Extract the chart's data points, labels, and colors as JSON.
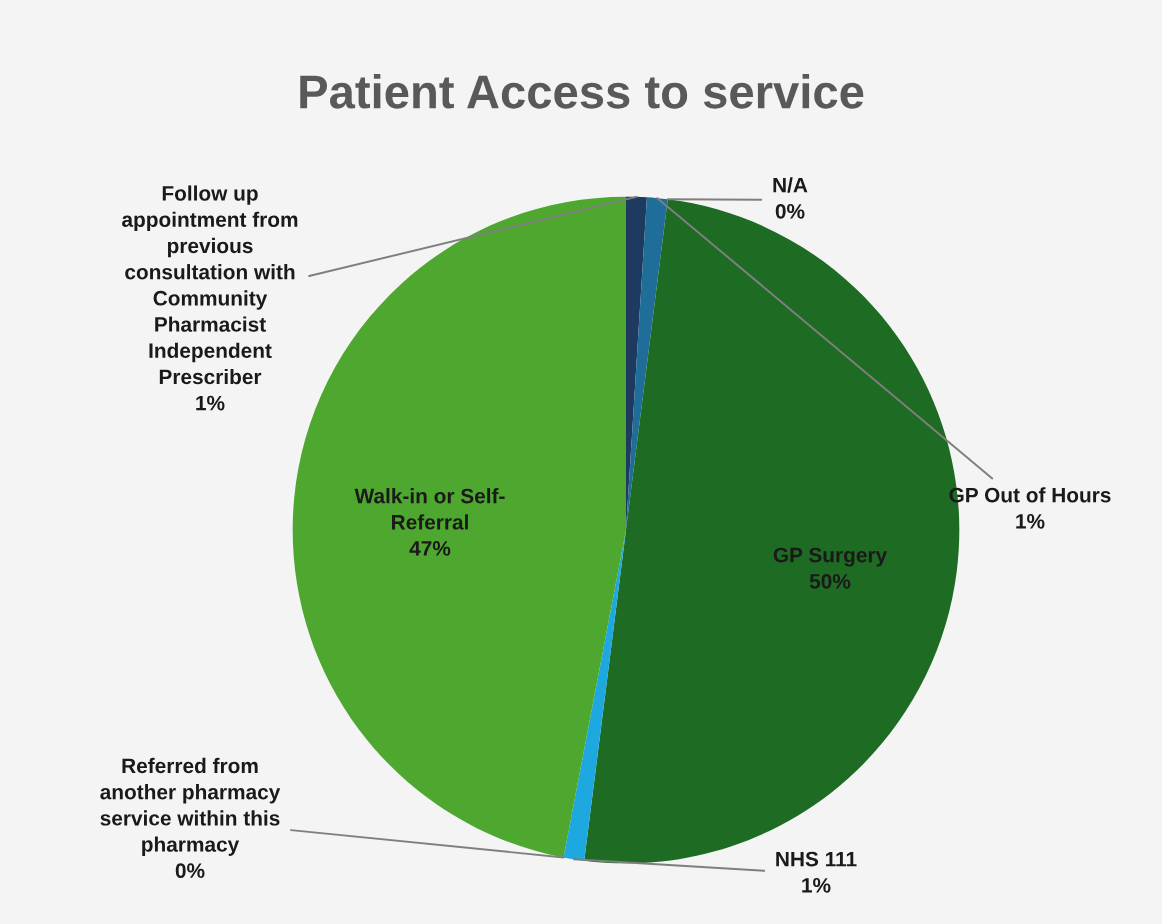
{
  "chart_data": {
    "type": "pie",
    "title": "Patient Access to service",
    "categories": [
      "Follow up\nappointment from\nprevious\nconsultation with\nCommunity\nPharmacist\nIndependent\nPrescriber",
      "GP Out of Hours",
      "N/A",
      "GP Surgery",
      "NHS 111",
      "Referred from\nanother pharmacy\nservice within this\npharmacy",
      "Walk-in or Self-\nReferral"
    ],
    "values": [
      1,
      1,
      0,
      50,
      1,
      0,
      47
    ],
    "value_labels": [
      "1%",
      "1%",
      "0%",
      "50%",
      "1%",
      "0%",
      "47%"
    ],
    "colors": [
      "#1f3a5f",
      "#1f6e99",
      "#ed7d31",
      "#1e6b24",
      "#1ea8e0",
      "#a030a0",
      "#4ea72e"
    ],
    "legend": false
  }
}
